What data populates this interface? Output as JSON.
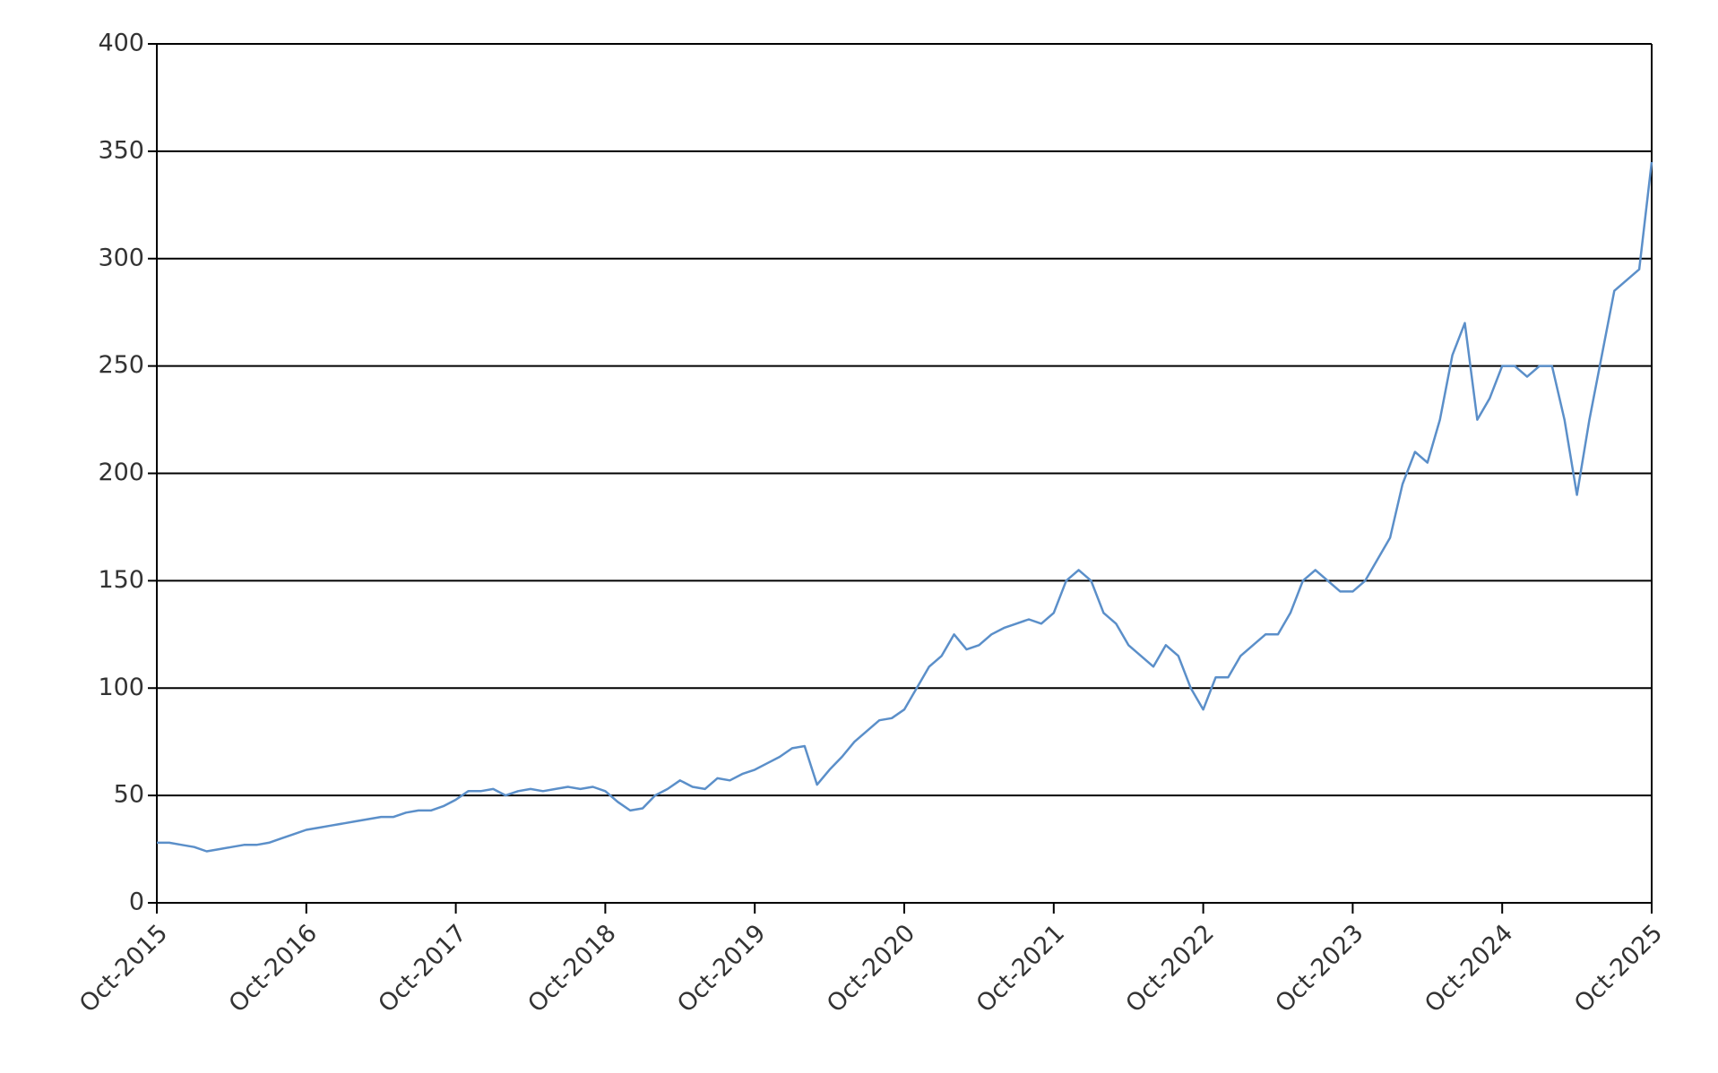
{
  "chart_data": {
    "type": "line",
    "x": [
      "2015-10",
      "2015-11",
      "2015-12",
      "2016-01",
      "2016-02",
      "2016-03",
      "2016-04",
      "2016-05",
      "2016-06",
      "2016-07",
      "2016-08",
      "2016-09",
      "2016-10",
      "2016-11",
      "2016-12",
      "2017-01",
      "2017-02",
      "2017-03",
      "2017-04",
      "2017-05",
      "2017-06",
      "2017-07",
      "2017-08",
      "2017-09",
      "2017-10",
      "2017-11",
      "2017-12",
      "2018-01",
      "2018-02",
      "2018-03",
      "2018-04",
      "2018-05",
      "2018-06",
      "2018-07",
      "2018-08",
      "2018-09",
      "2018-10",
      "2018-11",
      "2018-12",
      "2019-01",
      "2019-02",
      "2019-03",
      "2019-04",
      "2019-05",
      "2019-06",
      "2019-07",
      "2019-08",
      "2019-09",
      "2019-10",
      "2019-11",
      "2019-12",
      "2020-01",
      "2020-02",
      "2020-03",
      "2020-04",
      "2020-05",
      "2020-06",
      "2020-07",
      "2020-08",
      "2020-09",
      "2020-10",
      "2020-11",
      "2020-12",
      "2021-01",
      "2021-02",
      "2021-03",
      "2021-04",
      "2021-05",
      "2021-06",
      "2021-07",
      "2021-08",
      "2021-09",
      "2021-10",
      "2021-11",
      "2021-12",
      "2022-01",
      "2022-02",
      "2022-03",
      "2022-04",
      "2022-05",
      "2022-06",
      "2022-07",
      "2022-08",
      "2022-09",
      "2022-10",
      "2022-11",
      "2022-12",
      "2023-01",
      "2023-02",
      "2023-03",
      "2023-04",
      "2023-05",
      "2023-06",
      "2023-07",
      "2023-08",
      "2023-09",
      "2023-10",
      "2023-11",
      "2023-12",
      "2024-01",
      "2024-02",
      "2024-03",
      "2024-04",
      "2024-05",
      "2024-06",
      "2024-07",
      "2024-08",
      "2024-09",
      "2024-10",
      "2024-11",
      "2024-12",
      "2025-01",
      "2025-02",
      "2025-03",
      "2025-04",
      "2025-05",
      "2025-06",
      "2025-07",
      "2025-08",
      "2025-09",
      "2025-10"
    ],
    "values": [
      28,
      28,
      27,
      26,
      24,
      25,
      26,
      27,
      27,
      28,
      30,
      32,
      34,
      35,
      36,
      37,
      38,
      39,
      40,
      40,
      42,
      43,
      43,
      45,
      48,
      52,
      52,
      53,
      50,
      52,
      53,
      52,
      53,
      54,
      53,
      54,
      52,
      47,
      43,
      44,
      50,
      53,
      57,
      54,
      53,
      58,
      57,
      60,
      62,
      65,
      68,
      72,
      73,
      55,
      62,
      68,
      75,
      80,
      85,
      86,
      90,
      100,
      110,
      115,
      125,
      118,
      120,
      125,
      128,
      130,
      132,
      130,
      135,
      150,
      155,
      150,
      135,
      130,
      120,
      115,
      110,
      120,
      115,
      100,
      90,
      105,
      105,
      115,
      120,
      125,
      125,
      135,
      150,
      155,
      150,
      145,
      145,
      150,
      160,
      170,
      195,
      210,
      205,
      225,
      255,
      270,
      225,
      235,
      250,
      250,
      245,
      250,
      250,
      225,
      190,
      225,
      255,
      285,
      290,
      295,
      345
    ],
    "color": "#5b8fc9",
    "xlim": [
      "2015-10",
      "2025-10"
    ],
    "xticks": [
      {
        "value": "2015-10",
        "label": "Oct-2015"
      },
      {
        "value": "2016-10",
        "label": "Oct-2016"
      },
      {
        "value": "2017-10",
        "label": "Oct-2017"
      },
      {
        "value": "2018-10",
        "label": "Oct-2018"
      },
      {
        "value": "2019-10",
        "label": "Oct-2019"
      },
      {
        "value": "2020-10",
        "label": "Oct-2020"
      },
      {
        "value": "2021-10",
        "label": "Oct-2021"
      },
      {
        "value": "2022-10",
        "label": "Oct-2022"
      },
      {
        "value": "2023-10",
        "label": "Oct-2023"
      },
      {
        "value": "2024-10",
        "label": "Oct-2024"
      },
      {
        "value": "2025-10",
        "label": "Oct-2025"
      }
    ],
    "ylim": [
      0,
      400
    ],
    "yticks": [
      0,
      50,
      100,
      150,
      200,
      250,
      300,
      350,
      400
    ],
    "grid": true
  }
}
